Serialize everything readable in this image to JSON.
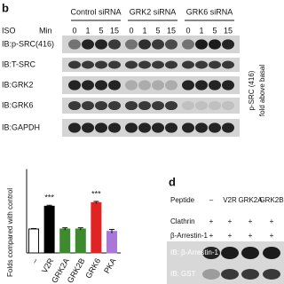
{
  "panel_b": {
    "label": "b",
    "row_header": "ISO",
    "time_header": "Min",
    "groups": [
      {
        "name": "Control siRNA",
        "times": [
          "0",
          "1",
          "5",
          "15"
        ]
      },
      {
        "name": "GRK2 siRNA",
        "times": [
          "0",
          "1",
          "5",
          "15"
        ]
      },
      {
        "name": "GRK6 siRNA",
        "times": [
          "0",
          "1",
          "5",
          "15"
        ]
      }
    ],
    "blots": [
      "IB:p-SRC(416)",
      "IB:T-SRC",
      "IB:GRK2",
      "IB:GRK6",
      "IB:GAPDH"
    ],
    "side_axis_label": [
      "p-SRC (416)",
      "fold above basal"
    ]
  },
  "chart_data": {
    "type": "bar",
    "ylabel": "Folds compared with control",
    "categories": [
      "–",
      "V2R",
      "GRK2A",
      "GRK2B",
      "GRK6",
      "PKA"
    ],
    "values": [
      1.0,
      1.95,
      1.0,
      1.0,
      2.1,
      0.9
    ],
    "errors": [
      0.02,
      0.04,
      0.05,
      0.05,
      0.05,
      0.08
    ],
    "colors": [
      "#ffffff",
      "#000000",
      "#3d8b2e",
      "#3d8b2e",
      "#e02424",
      "#a877d8"
    ],
    "significance": [
      null,
      "***",
      null,
      null,
      "***",
      null
    ],
    "ylim": [
      0,
      3.5
    ]
  },
  "panel_d": {
    "label": "d",
    "peptide_header": "Peptide",
    "peptides": [
      "–",
      "V2R",
      "GRK2A",
      "GRK2B"
    ],
    "conditions": [
      {
        "name": "Clathrin",
        "marks": [
          "+",
          "+",
          "+",
          "+"
        ]
      },
      {
        "name": "β-Arrestin-1",
        "marks": [
          "+",
          "+",
          "+",
          "+"
        ]
      }
    ],
    "blots": [
      "IB: β-Arrestin-1",
      "IB: GST"
    ]
  }
}
